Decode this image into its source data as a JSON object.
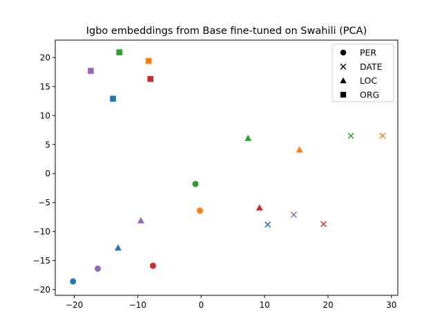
{
  "chart_data": {
    "type": "scatter",
    "title": "Igbo embeddings from Base fine-tuned on Swahili (PCA)",
    "xlabel": "",
    "ylabel": "",
    "xlim": [
      -23,
      31
    ],
    "ylim": [
      -21,
      23
    ],
    "xticks": [
      -20,
      -10,
      0,
      10,
      20,
      30
    ],
    "yticks": [
      -20,
      -15,
      -10,
      -5,
      0,
      5,
      10,
      15,
      20
    ],
    "xtick_labels": [
      "−20",
      "−10",
      "0",
      "10",
      "20",
      "30"
    ],
    "ytick_labels": [
      "−20",
      "−15",
      "−10",
      "−5",
      "0",
      "5",
      "10",
      "15",
      "20"
    ],
    "grid": false,
    "legend_position": "top-right",
    "legend": [
      {
        "label": "PER",
        "marker": "circle"
      },
      {
        "label": "DATE",
        "marker": "x"
      },
      {
        "label": "LOC",
        "marker": "triangle"
      },
      {
        "label": "ORG",
        "marker": "square"
      }
    ],
    "points": [
      {
        "x": -20.2,
        "y": -18.6,
        "marker": "circle",
        "color": "#1f77b4"
      },
      {
        "x": -16.3,
        "y": -16.4,
        "marker": "circle",
        "color": "#9467bd"
      },
      {
        "x": -7.6,
        "y": -15.9,
        "marker": "circle",
        "color": "#d62728"
      },
      {
        "x": -0.9,
        "y": -1.8,
        "marker": "circle",
        "color": "#2ca02c"
      },
      {
        "x": -0.2,
        "y": -6.4,
        "marker": "circle",
        "color": "#ff7f0e"
      },
      {
        "x": 10.5,
        "y": -8.8,
        "marker": "x",
        "color": "#1f77b4"
      },
      {
        "x": 14.6,
        "y": -7.1,
        "marker": "x",
        "color": "#9467bd"
      },
      {
        "x": 19.3,
        "y": -8.7,
        "marker": "x",
        "color": "#d62728"
      },
      {
        "x": 23.6,
        "y": 6.5,
        "marker": "x",
        "color": "#2ca02c"
      },
      {
        "x": 28.6,
        "y": 6.5,
        "marker": "x",
        "color": "#ff7f0e"
      },
      {
        "x": -13.1,
        "y": -12.8,
        "marker": "triangle",
        "color": "#1f77b4"
      },
      {
        "x": -9.5,
        "y": -8.1,
        "marker": "triangle",
        "color": "#9467bd"
      },
      {
        "x": 9.2,
        "y": -5.9,
        "marker": "triangle",
        "color": "#d62728"
      },
      {
        "x": 7.4,
        "y": 6.1,
        "marker": "triangle",
        "color": "#2ca02c"
      },
      {
        "x": 15.5,
        "y": 4.1,
        "marker": "triangle",
        "color": "#ff7f0e"
      },
      {
        "x": -13.9,
        "y": 12.9,
        "marker": "square",
        "color": "#1f77b4"
      },
      {
        "x": -17.4,
        "y": 17.7,
        "marker": "square",
        "color": "#9467bd"
      },
      {
        "x": -8.0,
        "y": 16.3,
        "marker": "square",
        "color": "#d62728"
      },
      {
        "x": -12.9,
        "y": 20.9,
        "marker": "square",
        "color": "#2ca02c"
      },
      {
        "x": -8.3,
        "y": 19.4,
        "marker": "square",
        "color": "#ff7f0e"
      }
    ]
  }
}
